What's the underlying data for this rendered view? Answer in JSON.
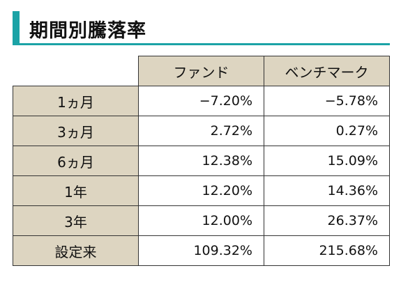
{
  "colors": {
    "accent_bar": "#1ba3a6",
    "header_bg": "#ddd5c1"
  },
  "title": "期間別騰落率",
  "table": {
    "headers": [
      "ファンド",
      "ベンチマーク"
    ],
    "rows": [
      {
        "label": "1ヵ月",
        "fund": "−7.20%",
        "benchmark": "−5.78%"
      },
      {
        "label": "3ヵ月",
        "fund": "2.72%",
        "benchmark": "0.27%"
      },
      {
        "label": "6ヵ月",
        "fund": "12.38%",
        "benchmark": "15.09%"
      },
      {
        "label": "1年",
        "fund": "12.20%",
        "benchmark": "14.36%"
      },
      {
        "label": "3年",
        "fund": "12.00%",
        "benchmark": "26.37%"
      },
      {
        "label": "設定来",
        "fund": "109.32%",
        "benchmark": "215.68%"
      }
    ]
  }
}
